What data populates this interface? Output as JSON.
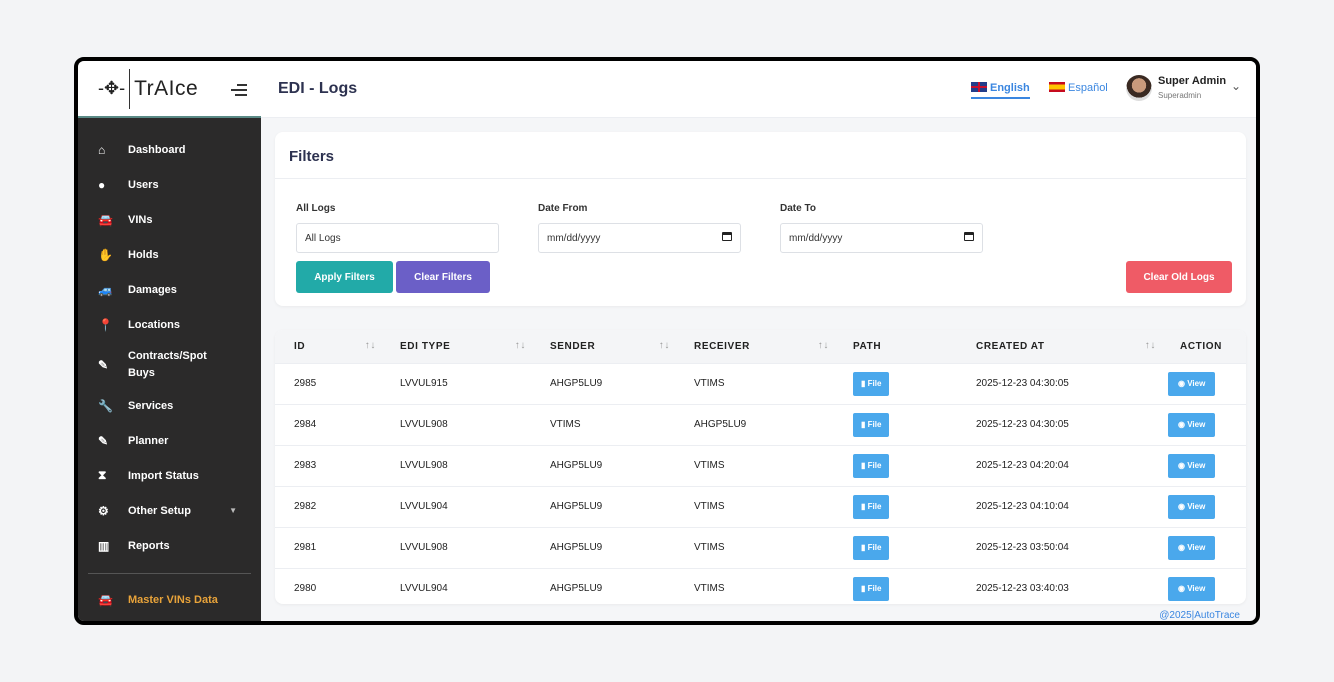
{
  "brand": {
    "name": "TrAIce"
  },
  "sidebar": {
    "items": [
      {
        "label": "Dashboard",
        "icon": "home-icon",
        "glyph": "⌂"
      },
      {
        "label": "Users",
        "icon": "user-icon",
        "glyph": "●"
      },
      {
        "label": "VINs",
        "icon": "car-icon",
        "glyph": "🚘"
      },
      {
        "label": "Holds",
        "icon": "hand-icon",
        "glyph": "✋"
      },
      {
        "label": "Damages",
        "icon": "car-crash-icon",
        "glyph": "🚙"
      },
      {
        "label": "Locations",
        "icon": "map-pin-icon",
        "glyph": "📍"
      },
      {
        "label": "Contracts/Spot Buys",
        "icon": "file-signature-icon",
        "glyph": "✎"
      },
      {
        "label": "Services",
        "icon": "wrench-icon",
        "glyph": "🔧"
      },
      {
        "label": "Planner",
        "icon": "file-edit-icon",
        "glyph": "✎"
      },
      {
        "label": "Import Status",
        "icon": "hourglass-icon",
        "glyph": "⧗"
      },
      {
        "label": "Other Setup",
        "icon": "cogs-icon",
        "glyph": "⚙"
      },
      {
        "label": "Reports",
        "icon": "chart-bar-icon",
        "glyph": "▥"
      }
    ],
    "master": {
      "label": "Master VINs Data",
      "icon": "car-icon",
      "glyph": "🚘"
    }
  },
  "header": {
    "title": "EDI - Logs",
    "lang_en": "English",
    "lang_es": "Español",
    "user_name": "Super Admin",
    "user_role": "Superadmin"
  },
  "filters": {
    "title": "Filters",
    "all_logs_label": "All Logs",
    "all_logs_value": "All Logs",
    "date_from_label": "Date From",
    "date_from_placeholder": "mm/dd/yyyy",
    "date_to_label": "Date To",
    "date_to_placeholder": "mm/dd/yyyy",
    "apply": "Apply Filters",
    "clear": "Clear Filters",
    "clear_old": "Clear Old Logs"
  },
  "colors": {
    "apply": "#22aaa8",
    "clear": "#6b5fc7",
    "clear_old": "#ef5b66",
    "action": "#4aa8ec",
    "sidebar": "#2b2a2a",
    "master": "#e8a33a"
  },
  "table": {
    "columns": [
      "ID",
      "EDI TYPE",
      "SENDER",
      "RECEIVER",
      "PATH",
      "CREATED AT",
      "ACTION"
    ],
    "file_label": "File",
    "view_label": "View",
    "rows": [
      {
        "id": "2985",
        "type": "LVVUL915",
        "sender": "AHGP5LU9",
        "receiver": "VTIMS",
        "created": "2025-12-23 04:30:05"
      },
      {
        "id": "2984",
        "type": "LVVUL908",
        "sender": "VTIMS",
        "receiver": "AHGP5LU9",
        "created": "2025-12-23 04:30:05"
      },
      {
        "id": "2983",
        "type": "LVVUL908",
        "sender": "AHGP5LU9",
        "receiver": "VTIMS",
        "created": "2025-12-23 04:20:04"
      },
      {
        "id": "2982",
        "type": "LVVUL904",
        "sender": "AHGP5LU9",
        "receiver": "VTIMS",
        "created": "2025-12-23 04:10:04"
      },
      {
        "id": "2981",
        "type": "LVVUL908",
        "sender": "AHGP5LU9",
        "receiver": "VTIMS",
        "created": "2025-12-23 03:50:04"
      },
      {
        "id": "2980",
        "type": "LVVUL904",
        "sender": "AHGP5LU9",
        "receiver": "VTIMS",
        "created": "2025-12-23 03:40:03"
      }
    ]
  },
  "footer": "@2025|AutoTrace"
}
